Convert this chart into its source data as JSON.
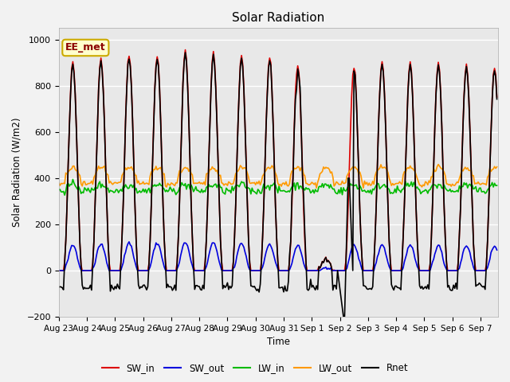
{
  "title": "Solar Radiation",
  "ylabel": "Solar Radiation (W/m2)",
  "xlabel": "Time",
  "ylim": [
    -200,
    1050
  ],
  "xlim": [
    0,
    375
  ],
  "plot_bg": "#e8e8e8",
  "fig_bg": "#f2f2f2",
  "legend_label": "EE_met",
  "series": {
    "SW_in": {
      "color": "#dd0000",
      "lw": 1.2
    },
    "SW_out": {
      "color": "#0000dd",
      "lw": 1.2
    },
    "LW_in": {
      "color": "#00bb00",
      "lw": 1.2
    },
    "LW_out": {
      "color": "#ff9900",
      "lw": 1.2
    },
    "Rnet": {
      "color": "#000000",
      "lw": 1.2
    }
  },
  "xtick_labels": [
    "Aug 23",
    "Aug 24",
    "Aug 25",
    "Aug 26",
    "Aug 27",
    "Aug 28",
    "Aug 29",
    "Aug 30",
    "Aug 31",
    "Sep 1",
    "Sep 2",
    "Sep 3",
    "Sep 4",
    "Sep 5",
    "Sep 6",
    "Sep 7"
  ],
  "xtick_positions": [
    0,
    24,
    48,
    72,
    96,
    120,
    144,
    168,
    192,
    216,
    240,
    264,
    288,
    312,
    336,
    360
  ]
}
